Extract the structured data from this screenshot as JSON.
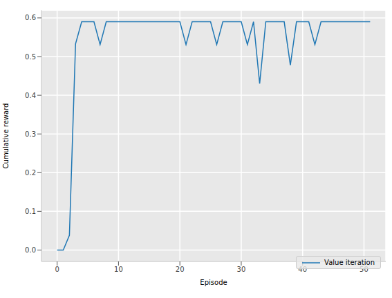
{
  "chart_data": {
    "type": "line",
    "x_label": "Episode",
    "y_label": "Cumulative reward",
    "x": [
      0,
      1,
      2,
      3,
      4,
      5,
      6,
      7,
      8,
      9,
      10,
      11,
      12,
      13,
      14,
      15,
      16,
      17,
      18,
      19,
      20,
      21,
      22,
      23,
      24,
      25,
      26,
      27,
      28,
      29,
      30,
      31,
      32,
      33,
      34,
      35,
      36,
      37,
      38,
      39,
      40,
      41,
      42,
      43,
      44,
      45,
      46,
      47,
      48,
      49,
      50,
      51
    ],
    "series": [
      {
        "name": "Value iteration",
        "color": "#1f77b4",
        "values": [
          0,
          0,
          0.038,
          0.533,
          0.59,
          0.59,
          0.59,
          0.531,
          0.59,
          0.59,
          0.59,
          0.59,
          0.59,
          0.59,
          0.59,
          0.59,
          0.59,
          0.59,
          0.59,
          0.59,
          0.59,
          0.531,
          0.59,
          0.59,
          0.59,
          0.59,
          0.531,
          0.59,
          0.59,
          0.59,
          0.59,
          0.531,
          0.59,
          0.43,
          0.59,
          0.59,
          0.59,
          0.59,
          0.478,
          0.59,
          0.59,
          0.59,
          0.531,
          0.59,
          0.59,
          0.59,
          0.59,
          0.59,
          0.59,
          0.59,
          0.59,
          0.59
        ]
      }
    ],
    "xlim": [
      -2.55,
      53.55
    ],
    "ylim": [
      -0.0295,
      0.6195
    ],
    "xticks": [
      0,
      10,
      20,
      30,
      40,
      50
    ],
    "yticks": [
      {
        "value": 0,
        "label": "0.0"
      },
      0.1,
      0.2,
      0.3,
      0.4,
      0.5,
      0.6
    ],
    "grid": true,
    "legend": "lower right"
  }
}
